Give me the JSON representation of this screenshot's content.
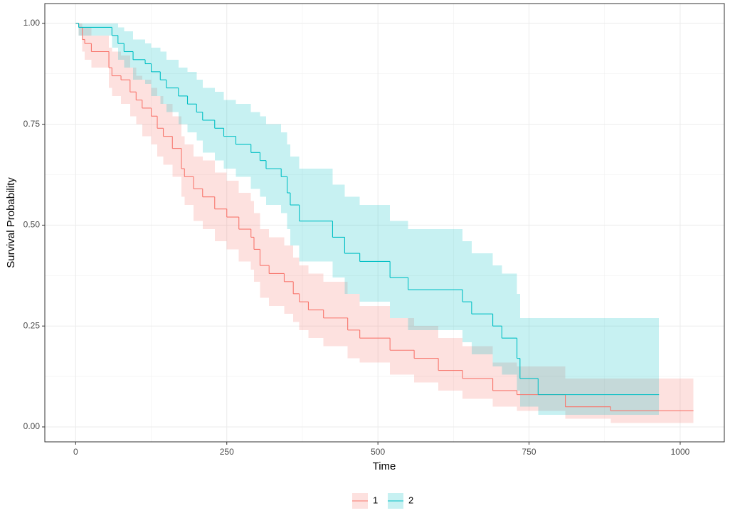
{
  "chart_data": {
    "type": "step",
    "x_label": "Time",
    "y_label": "Survival Probability",
    "xlim": [
      -51,
      1073
    ],
    "ylim": [
      -0.037,
      1.049
    ],
    "xticks": [
      0,
      250,
      500,
      750,
      1000
    ],
    "yticks": [
      {
        "value": 0,
        "label": "0.00"
      },
      {
        "value": 0.25,
        "label": "0.25"
      },
      {
        "value": 0.5,
        "label": "0.50"
      },
      {
        "value": 0.75,
        "label": "0.75"
      },
      {
        "value": 1,
        "label": "1.00"
      }
    ],
    "grid": true,
    "legend": "bottom",
    "series": [
      {
        "name": "1",
        "color": "#F8766D",
        "x": [
          0,
          5,
          11,
          15,
          26,
          55,
          60,
          75,
          90,
          100,
          110,
          125,
          135,
          145,
          160,
          175,
          180,
          195,
          210,
          230,
          250,
          270,
          290,
          295,
          305,
          320,
          345,
          360,
          370,
          385,
          410,
          450,
          470,
          520,
          560,
          600,
          640,
          690,
          730,
          810,
          885,
          1022
        ],
        "values": [
          1,
          0.99,
          0.96,
          0.95,
          0.93,
          0.89,
          0.87,
          0.86,
          0.83,
          0.81,
          0.79,
          0.77,
          0.74,
          0.72,
          0.69,
          0.64,
          0.62,
          0.59,
          0.57,
          0.54,
          0.52,
          0.49,
          0.47,
          0.44,
          0.4,
          0.38,
          0.36,
          0.33,
          0.31,
          0.29,
          0.27,
          0.24,
          0.22,
          0.19,
          0.17,
          0.14,
          0.12,
          0.09,
          0.08,
          0.05,
          0.04,
          0.04
        ],
        "lower": [
          1,
          0.97,
          0.93,
          0.91,
          0.89,
          0.84,
          0.82,
          0.8,
          0.77,
          0.75,
          0.72,
          0.7,
          0.67,
          0.65,
          0.62,
          0.57,
          0.55,
          0.51,
          0.49,
          0.46,
          0.44,
          0.41,
          0.39,
          0.36,
          0.32,
          0.3,
          0.28,
          0.26,
          0.24,
          0.22,
          0.2,
          0.17,
          0.16,
          0.13,
          0.11,
          0.09,
          0.07,
          0.05,
          0.04,
          0.02,
          0.01,
          0.01
        ],
        "upper": [
          1,
          1,
          0.99,
          0.99,
          0.97,
          0.94,
          0.93,
          0.92,
          0.89,
          0.87,
          0.86,
          0.84,
          0.82,
          0.8,
          0.77,
          0.72,
          0.7,
          0.67,
          0.66,
          0.63,
          0.61,
          0.58,
          0.56,
          0.53,
          0.49,
          0.47,
          0.45,
          0.42,
          0.4,
          0.38,
          0.36,
          0.33,
          0.3,
          0.27,
          0.25,
          0.22,
          0.2,
          0.16,
          0.15,
          0.12,
          0.12,
          0.12
        ]
      },
      {
        "name": "2",
        "color": "#00BFC4",
        "x": [
          0,
          5,
          60,
          70,
          80,
          95,
          115,
          125,
          140,
          150,
          170,
          185,
          200,
          210,
          230,
          245,
          265,
          290,
          305,
          315,
          340,
          350,
          355,
          370,
          425,
          445,
          470,
          520,
          550,
          640,
          655,
          690,
          705,
          730,
          735,
          765,
          965
        ],
        "values": [
          1,
          0.99,
          0.97,
          0.95,
          0.93,
          0.91,
          0.9,
          0.88,
          0.86,
          0.84,
          0.82,
          0.8,
          0.78,
          0.76,
          0.74,
          0.72,
          0.7,
          0.68,
          0.66,
          0.64,
          0.62,
          0.58,
          0.55,
          0.51,
          0.47,
          0.43,
          0.41,
          0.37,
          0.34,
          0.31,
          0.28,
          0.25,
          0.22,
          0.17,
          0.12,
          0.08,
          0.08
        ],
        "lower": [
          1,
          0.97,
          0.94,
          0.91,
          0.89,
          0.86,
          0.85,
          0.82,
          0.8,
          0.78,
          0.75,
          0.73,
          0.71,
          0.68,
          0.66,
          0.64,
          0.62,
          0.59,
          0.57,
          0.55,
          0.53,
          0.49,
          0.45,
          0.41,
          0.37,
          0.33,
          0.31,
          0.27,
          0.24,
          0.21,
          0.18,
          0.15,
          0.13,
          0.09,
          0.05,
          0.03,
          0.03
        ],
        "upper": [
          1,
          1,
          1,
          0.99,
          0.98,
          0.96,
          0.95,
          0.94,
          0.93,
          0.91,
          0.89,
          0.88,
          0.86,
          0.84,
          0.83,
          0.81,
          0.8,
          0.78,
          0.77,
          0.75,
          0.73,
          0.7,
          0.67,
          0.64,
          0.6,
          0.57,
          0.55,
          0.51,
          0.49,
          0.46,
          0.43,
          0.4,
          0.38,
          0.33,
          0.27,
          0.27,
          0.27
        ]
      }
    ]
  }
}
